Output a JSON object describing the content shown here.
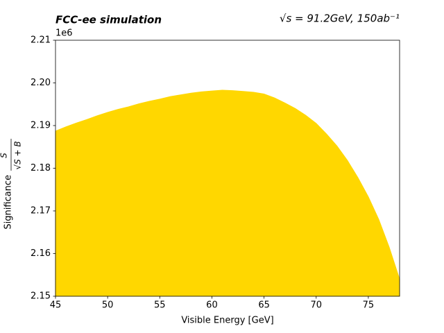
{
  "chart_data": {
    "type": "area",
    "title": "FCC-ee simulation",
    "annotation": "√s = 91.2GeV, 150ab⁻¹",
    "xlabel": "Visible Energy [GeV]",
    "ylabel": "Significance",
    "ylabel_numerator": "S",
    "ylabel_denominator": "√S + B",
    "y_offset": "1e6",
    "color": "#ffd700",
    "x": [
      45,
      46,
      47,
      48,
      49,
      50,
      51,
      52,
      53,
      54,
      55,
      56,
      57,
      58,
      59,
      60,
      61,
      62,
      63,
      64,
      65,
      66,
      67,
      68,
      69,
      70,
      71,
      72,
      73,
      74,
      75,
      76,
      77,
      78
    ],
    "values": [
      2.1887,
      2.1897,
      2.1906,
      2.1914,
      2.1923,
      2.1931,
      2.1938,
      2.1944,
      2.1951,
      2.1957,
      2.1962,
      2.1968,
      2.1972,
      2.1976,
      2.1979,
      2.1981,
      2.1983,
      2.1982,
      2.198,
      2.1978,
      2.1974,
      2.1965,
      2.1953,
      2.194,
      2.1924,
      2.1905,
      2.188,
      2.1852,
      2.1818,
      2.1778,
      2.1733,
      2.168,
      2.1615,
      2.154
    ],
    "xlim": [
      45,
      78
    ],
    "ylim": [
      2.15,
      2.21
    ],
    "xticks": [
      45,
      50,
      55,
      60,
      65,
      70,
      75
    ],
    "yticks": [
      2.15,
      2.16,
      2.17,
      2.18,
      2.19,
      {
        "value": 2.2,
        "label": "2.20"
      },
      2.21
    ],
    "grid": false
  }
}
